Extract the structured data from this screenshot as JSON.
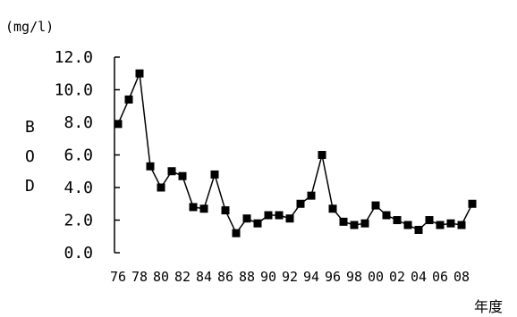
{
  "chart_data": {
    "type": "line",
    "unit_label": "(mg/l)",
    "ylabel": "BOD",
    "xlabel": "年度",
    "ylim": [
      0,
      12
    ],
    "yticks": [
      "0.0",
      "2.0",
      "4.0",
      "6.0",
      "8.0",
      "10.0",
      "12.0"
    ],
    "xticks": [
      "76",
      "78",
      "80",
      "82",
      "84",
      "86",
      "88",
      "90",
      "92",
      "94",
      "96",
      "98",
      "00",
      "02",
      "04",
      "06",
      "08"
    ],
    "x": [
      "1976",
      "1977",
      "1978",
      "1979",
      "1980",
      "1981",
      "1982",
      "1983",
      "1984",
      "1985",
      "1986",
      "1987",
      "1988",
      "1989",
      "1990",
      "1991",
      "1992",
      "1993",
      "1994",
      "1995",
      "1996",
      "1997",
      "1998",
      "1999",
      "2000",
      "2001",
      "2002",
      "2003",
      "2004",
      "2005",
      "2006",
      "2007",
      "2008",
      "2009"
    ],
    "series": [
      {
        "values": [
          7.9,
          9.4,
          11.0,
          5.3,
          4.0,
          5.0,
          4.7,
          2.8,
          2.7,
          4.8,
          2.6,
          1.2,
          2.1,
          1.8,
          2.3,
          2.3,
          2.1,
          3.0,
          3.5,
          6.0,
          2.7,
          1.9,
          1.7,
          1.8,
          2.9,
          2.3,
          2.0,
          1.7,
          1.4,
          2.0,
          1.7,
          1.8,
          1.7,
          3.0
        ],
        "marker": "square",
        "color": "#000000"
      }
    ],
    "grid": false,
    "legend": "none"
  }
}
